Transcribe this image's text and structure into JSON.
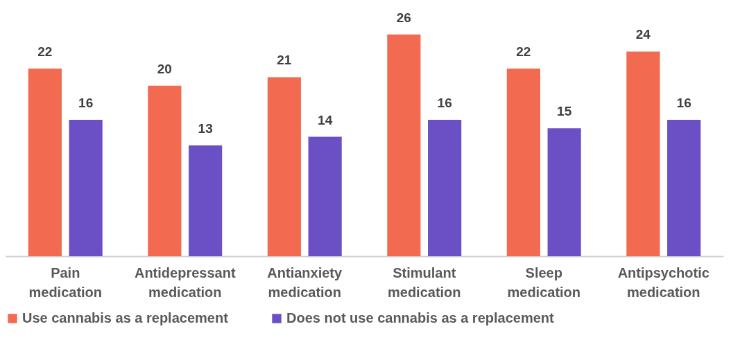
{
  "chart_data": {
    "type": "bar",
    "categories": [
      "Pain medication",
      "Antidepressant medication",
      "Antianxiety medication",
      "Stimulant medication",
      "Sleep medication",
      "Antipsychotic medication"
    ],
    "series": [
      {
        "name": "Use cannabis as a replacement",
        "color": "#f26b50",
        "values": [
          22,
          20,
          21,
          26,
          22,
          24
        ]
      },
      {
        "name": "Does not use cannabis as a replacement",
        "color": "#6b4fc4",
        "values": [
          16,
          13,
          14,
          16,
          15,
          16
        ]
      }
    ],
    "data_labels": true,
    "legend": "bottom",
    "grid": false
  }
}
